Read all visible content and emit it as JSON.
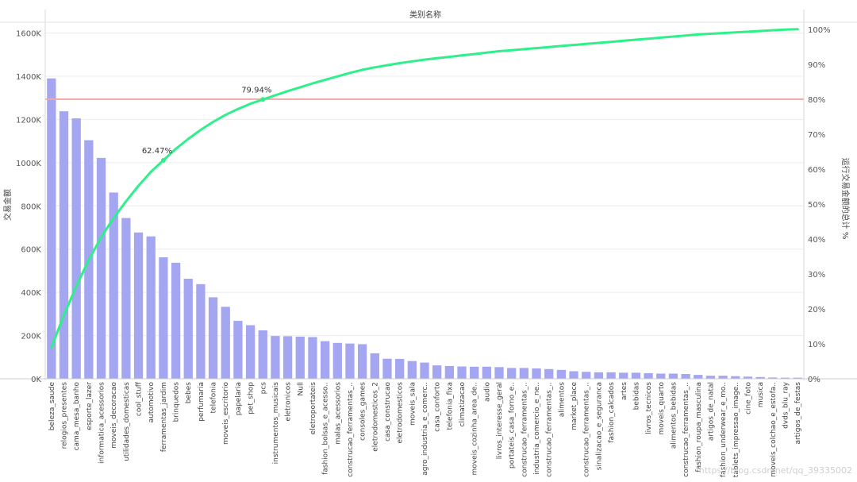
{
  "chart_data": {
    "type": "bar",
    "title": "类别名称",
    "ylabel": "交易金额",
    "y2label": "运行交易金额的总计 %",
    "ylim": [
      0,
      1650000
    ],
    "y2lim": [
      0,
      102
    ],
    "y_ticks": [
      0,
      200000,
      400000,
      600000,
      800000,
      1000000,
      1200000,
      1400000,
      1600000
    ],
    "y_tick_labels": [
      "0K",
      "200K",
      "400K",
      "600K",
      "800K",
      "1000K",
      "1200K",
      "1400K",
      "1600K"
    ],
    "y2_ticks": [
      0,
      10,
      20,
      30,
      40,
      50,
      60,
      70,
      80,
      90,
      100
    ],
    "y2_tick_labels": [
      "0%",
      "10%",
      "20%",
      "30%",
      "40%",
      "50%",
      "60%",
      "70%",
      "80%",
      "90%",
      "100%"
    ],
    "reference_line": {
      "value": 80
    },
    "categories": [
      "beleza_saude",
      "relogios_presentes",
      "cama_mesa_banho",
      "esporte_lazer",
      "informatica_acessorios",
      "moveis_decoracao",
      "utilidades_domesticas",
      "cool_stuff",
      "automotivo",
      "ferramentas_jardim",
      "brinquedos",
      "bebes",
      "perfumaria",
      "telefonia",
      "moveis_escritorio",
      "papelaria",
      "pet_shop",
      "pcs",
      "instrumentos_musicais",
      "eletronicos",
      "Null",
      "eletroportateis",
      "fashion_bolsas_e_acesso..",
      "malas_acessorios",
      "construcao_ferramentas_..",
      "consoles_games",
      "eletrodomesticos_2",
      "casa_construcao",
      "eletrodomesticos",
      "moveis_sala",
      "agro_industria_e_comerc..",
      "casa_conforto",
      "telefonia_fixa",
      "climatizacao",
      "moveis_cozinha_area_de..",
      "audio",
      "livros_interesse_geral",
      "portateis_casa_forno_e..",
      "construcao_ferramentas_..",
      "industria_comercio_e_ne..",
      "construcao_ferramentas_..",
      "alimentos",
      "market_place",
      "construcao_ferramentas_..",
      "sinalizacao_e_seguranca",
      "fashion_calcados",
      "artes",
      "bebidas",
      "livros_tecnicos",
      "moveis_quarto",
      "alimentos_bebidas",
      "construcao_ferramentas_..",
      "fashion_roupa_masculina",
      "artigos_de_natal",
      "fashion_underwear_e_mo..",
      "tablets_impressao_image..",
      "cine_foto",
      "musica",
      "moveis_colchao_e_estofa..",
      "dvds_blu_ray",
      "artigos_de_festas"
    ],
    "series": [
      {
        "type": "bar",
        "color": "#a4a6f2",
        "values": [
          1390000,
          1238000,
          1205000,
          1104000,
          1022000,
          862000,
          744000,
          677000,
          659000,
          562000,
          537000,
          463000,
          438000,
          377000,
          333000,
          268000,
          248000,
          224000,
          198000,
          197000,
          195000,
          193000,
          174000,
          166000,
          163000,
          160000,
          118000,
          93000,
          92000,
          82000,
          75000,
          62000,
          59000,
          57000,
          56000,
          56000,
          54000,
          50000,
          50000,
          48000,
          45000,
          41000,
          35000,
          32000,
          30000,
          30000,
          28000,
          28000,
          26000,
          24000,
          24000,
          22000,
          18000,
          14000,
          14000,
          12000,
          10000,
          8000,
          6000,
          5000,
          5000
        ]
      },
      {
        "type": "line",
        "color": "#2ef08a",
        "values": [
          9.0,
          18.2,
          26.5,
          34.0,
          40.5,
          46.0,
          50.8,
          55.2,
          59.2,
          62.5,
          65.8,
          68.6,
          71.2,
          73.5,
          75.5,
          77.2,
          78.7,
          79.9,
          81.1,
          82.3,
          83.4,
          84.5,
          85.5,
          86.5,
          87.5,
          88.4,
          89.1,
          89.7,
          90.3,
          90.8,
          91.3,
          91.7,
          92.1,
          92.5,
          92.9,
          93.3,
          93.7,
          94.0,
          94.3,
          94.6,
          94.9,
          95.2,
          95.5,
          95.8,
          96.1,
          96.4,
          96.7,
          97.0,
          97.3,
          97.6,
          97.9,
          98.2,
          98.5,
          98.7,
          98.9,
          99.1,
          99.3,
          99.5,
          99.7,
          99.9,
          100.0
        ]
      }
    ],
    "annotations": [
      {
        "index": 9,
        "text": "62.47%"
      },
      {
        "index": 17,
        "text": "79.94%"
      }
    ],
    "grid": true,
    "legend": "none"
  },
  "watermark": "https://blog.csdn.net/qq_39335002"
}
